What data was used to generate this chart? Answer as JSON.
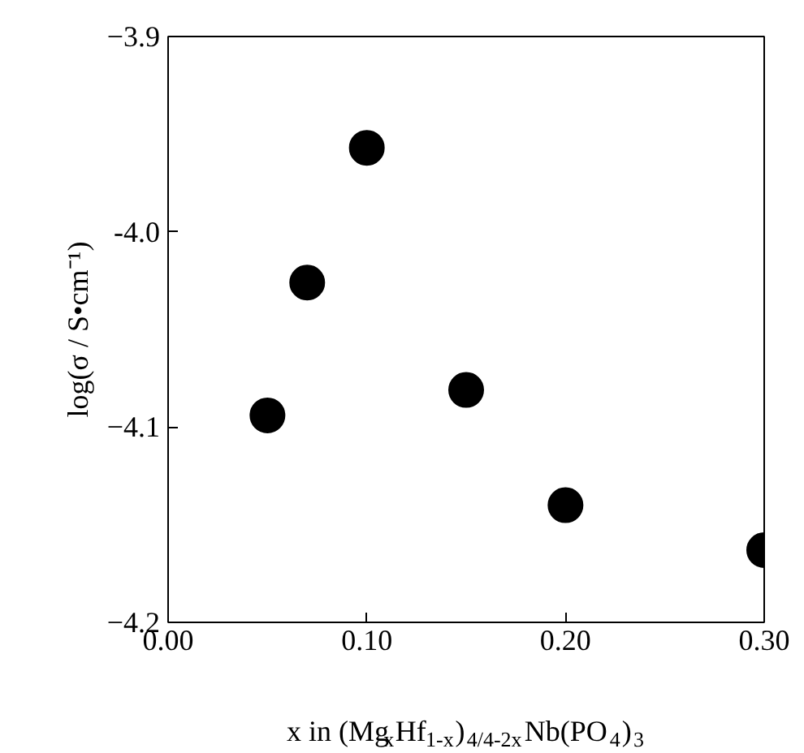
{
  "chart_data": {
    "type": "scatter",
    "xlabel": "x in (Mg$_{x}$Hf$_{1-x}$)$_{4/4-2x}$Nb(PO$_{4}$)$_{3}$",
    "ylabel": "log(σ / S•cm⁻¹)",
    "x": [
      0.05,
      0.07,
      0.1,
      0.15,
      0.2,
      0.3
    ],
    "values": [
      -4.094,
      -4.026,
      -3.957,
      -4.081,
      -4.14,
      -4.163
    ],
    "color": "#000000",
    "marker": "circle",
    "grid": false,
    "xlim": [
      0,
      0.3
    ],
    "ylim": [
      -4.2,
      -3.9
    ],
    "xticks": [
      {
        "value": 0,
        "label": "0.00"
      },
      {
        "value": 0.1,
        "label": "0.10"
      },
      {
        "value": 0.2,
        "label": "0.20"
      },
      {
        "value": 0.3,
        "label": "0.30"
      }
    ],
    "yticks": [
      -3.9,
      {
        "value": -4,
        "label": "-4.0"
      },
      -4.1,
      -4.2
    ]
  }
}
